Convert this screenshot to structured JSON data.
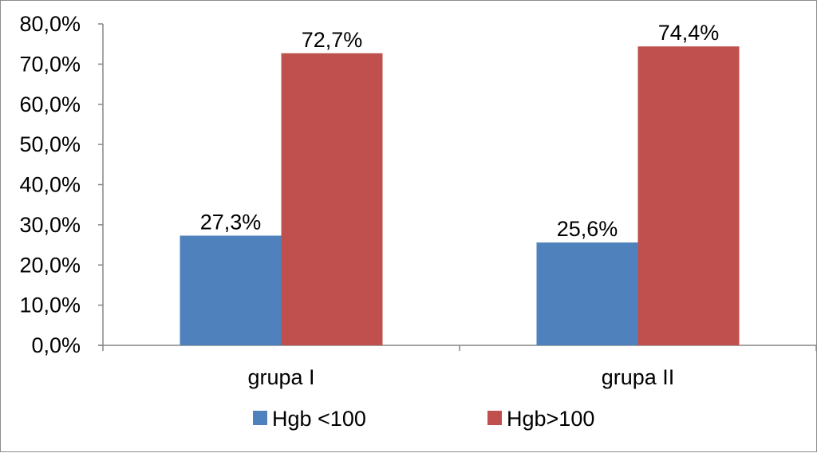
{
  "chart_data": {
    "type": "bar",
    "categories": [
      "grupa I",
      "grupa II"
    ],
    "series": [
      {
        "name": "Hgb <100",
        "values": [
          27.3,
          25.6
        ],
        "color": "#4f81bd"
      },
      {
        "name": "Hgb>100",
        "values": [
          72.7,
          74.4
        ],
        "color": "#c0504d"
      }
    ],
    "data_labels": [
      [
        "27,3%",
        "25,6%"
      ],
      [
        "72,7%",
        "74,4%"
      ]
    ],
    "ylim": [
      0,
      80
    ],
    "ytick_values": [
      0,
      10,
      20,
      30,
      40,
      50,
      60,
      70,
      80
    ],
    "yticks": [
      "0,0%",
      "10,0%",
      "20,0%",
      "30,0%",
      "40,0%",
      "50,0%",
      "60,0%",
      "70,0%",
      "80,0%"
    ],
    "grid": false,
    "legend_position": "bottom"
  }
}
